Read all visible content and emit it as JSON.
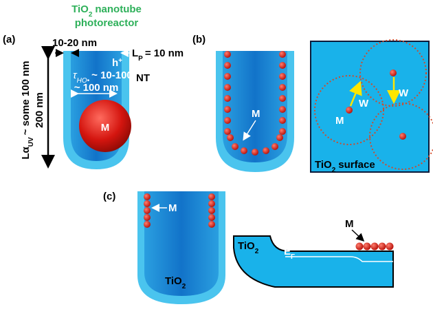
{
  "panel_a": {
    "label": "(a)",
    "title": {
      "chem": "TiO",
      "sub": "2",
      "rest": "nanotube",
      "line2": "photoreactor"
    },
    "wall_thickness": "10-20 nm",
    "penetration": {
      "main": "L",
      "sub": "P",
      "rest": "= 10 nm"
    },
    "hole": {
      "main": "h",
      "sup": "+"
    },
    "diffusion": {
      "main": "τ",
      "sub": "HO•",
      "rest": "~ 10-100 nm"
    },
    "tube_label": "NT",
    "diameter": "~ 100 nm",
    "particle": "M",
    "absorption": {
      "main": "Lα",
      "sub": "UV",
      "rest": "~ some 100 nm"
    },
    "length": "200 nm"
  },
  "panel_b": {
    "label": "(b)",
    "particle": "M",
    "surface_particle": "M",
    "distance_1": "W",
    "distance_2": "W",
    "surface": {
      "chem": "TiO",
      "sub": "2",
      "rest": "surface"
    }
  },
  "panel_c": {
    "label": "(c)",
    "particle": "M",
    "tube_material": {
      "chem": "TiO",
      "sub": "2"
    },
    "block_material": {
      "chem": "TiO",
      "sub": "2"
    },
    "fermi": {
      "main": "E",
      "sub": "F"
    },
    "surface_particle": "M"
  }
}
